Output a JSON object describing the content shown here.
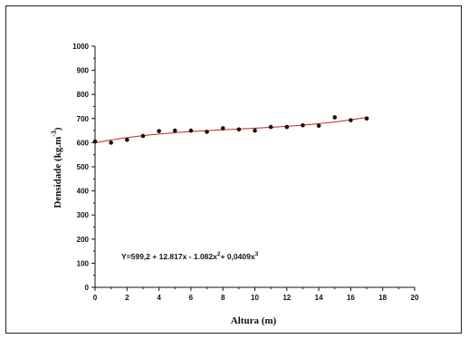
{
  "chart_data": {
    "type": "scatter",
    "title": "",
    "xlabel": "Altura (m)",
    "ylabel_parts": [
      "Densidade (kg.m",
      "-3",
      ")"
    ],
    "xlim": [
      0,
      20
    ],
    "ylim": [
      0,
      1000
    ],
    "x_ticks": [
      0,
      2,
      4,
      6,
      8,
      10,
      12,
      14,
      16,
      18,
      20
    ],
    "y_ticks": [
      0,
      100,
      200,
      300,
      400,
      500,
      600,
      700,
      800,
      900,
      1000
    ],
    "grid": false,
    "series": [
      {
        "x": [
          0,
          1,
          2,
          3,
          4,
          5,
          6,
          7,
          8,
          9,
          10,
          11,
          12,
          13,
          14,
          15,
          16,
          17
        ],
        "values": [
          605,
          600,
          612,
          628,
          648,
          650,
          650,
          645,
          660,
          655,
          650,
          665,
          665,
          672,
          670,
          705,
          693,
          700
        ],
        "color": "#111111"
      }
    ],
    "fit": {
      "color": "#cc2222",
      "coefficients": [
        599.2,
        12.817,
        -1.082,
        0.0409
      ],
      "x_range": [
        0,
        17
      ],
      "equation_parts": [
        "Y=599,2 + 12.817x - 1.082x",
        "2",
        "+ 0,0409x",
        "3"
      ]
    }
  }
}
